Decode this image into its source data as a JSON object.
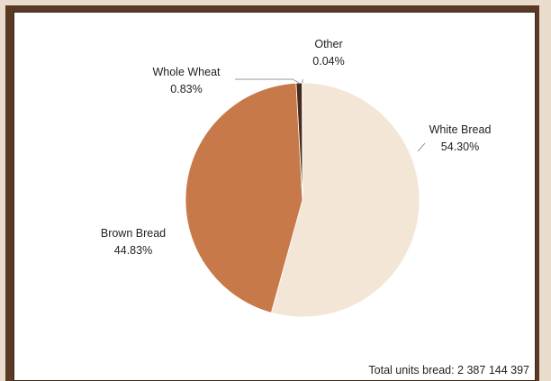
{
  "chart_data": {
    "type": "pie",
    "title": "",
    "slices": [
      {
        "label": "White Bread",
        "value": 54.3,
        "value_label": "54.30%",
        "color": "#f3e6d6"
      },
      {
        "label": "Brown Bread",
        "value": 44.83,
        "value_label": "44.83%",
        "color": "#c8794a"
      },
      {
        "label": "Whole Wheat",
        "value": 0.83,
        "value_label": "0.83%",
        "color": "#4a2a18"
      },
      {
        "label": "Other",
        "value": 0.04,
        "value_label": "0.04%",
        "color": "#2b1a10"
      }
    ],
    "note": "Total units bread:  2 387 144 397",
    "start": "top",
    "direction": "clockwise"
  }
}
